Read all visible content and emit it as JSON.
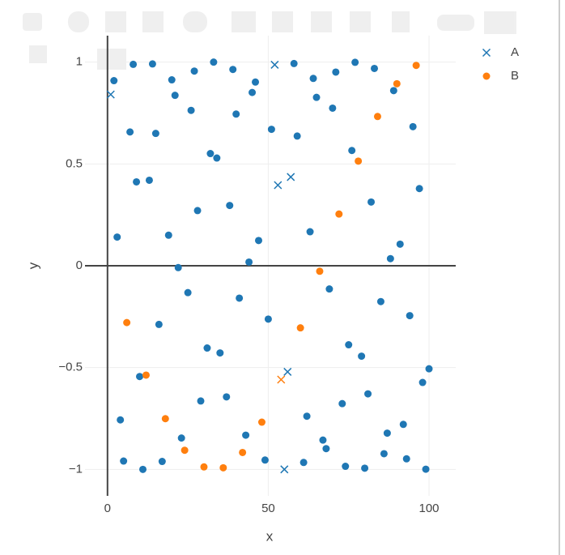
{
  "chart_data": {
    "type": "scatter",
    "x_label": "x",
    "y_label": "y",
    "xlim": [
      -7,
      108.3
    ],
    "ylim": [
      -1.13,
      1.13
    ],
    "xticks": [
      0,
      50,
      100
    ],
    "yticks": [
      {
        "value": -1,
        "label": "−1"
      },
      {
        "value": -0.5,
        "label": "−0.5"
      },
      0,
      0.5,
      1
    ],
    "grid": true,
    "zeroline": true,
    "legend": "top-right",
    "series": [
      {
        "name": "A",
        "symbol": "x",
        "color": "#1f77b4",
        "x": [
          1,
          52,
          53,
          54,
          55,
          56,
          57
        ],
        "values": [
          0.841,
          0.987,
          0.396,
          -0.559,
          -1.0,
          -0.521,
          0.436
        ],
        "colors": [
          "#1f77b4",
          "#1f77b4",
          "#1f77b4",
          "#ff7f0e",
          "#1f77b4",
          "#1f77b4",
          "#1f77b4"
        ]
      },
      {
        "name": "B",
        "symbol": "circle",
        "color": "#ff7f0e",
        "x": [
          2,
          3,
          4,
          5,
          6,
          7,
          8,
          9,
          10,
          11,
          12,
          13,
          14,
          15,
          16,
          17,
          18,
          19,
          20,
          21,
          22,
          23,
          24,
          25,
          26,
          27,
          28,
          29,
          30,
          31,
          32,
          33,
          34,
          35,
          36,
          37,
          38,
          39,
          40,
          41,
          42,
          43,
          44,
          45,
          46,
          47,
          48,
          49,
          50,
          51,
          58,
          59,
          60,
          61,
          62,
          63,
          64,
          65,
          66,
          67,
          68,
          69,
          70,
          71,
          72,
          73,
          74,
          75,
          76,
          77,
          78,
          79,
          80,
          81,
          82,
          83,
          84,
          85,
          86,
          87,
          88,
          89,
          90,
          91,
          92,
          93,
          94,
          95,
          96,
          97,
          98,
          99,
          100
        ],
        "values": [
          0.909,
          0.141,
          -0.757,
          -0.959,
          -0.279,
          0.657,
          0.989,
          0.412,
          -0.544,
          -1.0,
          -0.537,
          0.42,
          0.991,
          0.65,
          -0.288,
          -0.961,
          -0.751,
          0.15,
          0.913,
          0.837,
          -0.009,
          -0.846,
          -0.906,
          -0.132,
          0.763,
          0.956,
          0.271,
          -0.664,
          -0.988,
          -0.404,
          0.551,
          1.0,
          0.529,
          -0.428,
          -0.992,
          -0.644,
          0.296,
          0.964,
          0.745,
          -0.159,
          -0.917,
          -0.832,
          0.018,
          0.851,
          0.902,
          0.124,
          -0.768,
          -0.954,
          -0.262,
          0.67,
          0.993,
          0.637,
          -0.305,
          -0.966,
          -0.739,
          0.167,
          0.92,
          0.827,
          -0.027,
          -0.856,
          -0.898,
          -0.114,
          0.774,
          0.951,
          0.254,
          -0.677,
          -0.985,
          -0.388,
          0.566,
          0.999,
          0.514,
          -0.444,
          -0.994,
          -0.629,
          0.313,
          0.969,
          0.733,
          -0.176,
          -0.923,
          -0.822,
          0.035,
          0.86,
          0.894,
          0.106,
          -0.779,
          -0.948,
          -0.245,
          0.683,
          0.984,
          0.379,
          -0.573,
          -0.999,
          -0.506
        ],
        "colors": [
          "#1f77b4",
          "#1f77b4",
          "#1f77b4",
          "#1f77b4",
          "#ff7f0e",
          "#1f77b4",
          "#1f77b4",
          "#1f77b4",
          "#1f77b4",
          "#1f77b4",
          "#ff7f0e",
          "#1f77b4",
          "#1f77b4",
          "#1f77b4",
          "#1f77b4",
          "#1f77b4",
          "#ff7f0e",
          "#1f77b4",
          "#1f77b4",
          "#1f77b4",
          "#1f77b4",
          "#1f77b4",
          "#ff7f0e",
          "#1f77b4",
          "#1f77b4",
          "#1f77b4",
          "#1f77b4",
          "#1f77b4",
          "#ff7f0e",
          "#1f77b4",
          "#1f77b4",
          "#1f77b4",
          "#1f77b4",
          "#1f77b4",
          "#ff7f0e",
          "#1f77b4",
          "#1f77b4",
          "#1f77b4",
          "#1f77b4",
          "#1f77b4",
          "#ff7f0e",
          "#1f77b4",
          "#1f77b4",
          "#1f77b4",
          "#1f77b4",
          "#1f77b4",
          "#ff7f0e",
          "#1f77b4",
          "#1f77b4",
          "#1f77b4",
          "#1f77b4",
          "#1f77b4",
          "#ff7f0e",
          "#1f77b4",
          "#1f77b4",
          "#1f77b4",
          "#1f77b4",
          "#1f77b4",
          "#ff7f0e",
          "#1f77b4",
          "#1f77b4",
          "#1f77b4",
          "#1f77b4",
          "#1f77b4",
          "#ff7f0e",
          "#1f77b4",
          "#1f77b4",
          "#1f77b4",
          "#1f77b4",
          "#1f77b4",
          "#ff7f0e",
          "#1f77b4",
          "#1f77b4",
          "#1f77b4",
          "#1f77b4",
          "#1f77b4",
          "#ff7f0e",
          "#1f77b4",
          "#1f77b4",
          "#1f77b4",
          "#1f77b4",
          "#1f77b4",
          "#ff7f0e",
          "#1f77b4",
          "#1f77b4",
          "#1f77b4",
          "#1f77b4",
          "#1f77b4",
          "#ff7f0e",
          "#1f77b4",
          "#1f77b4",
          "#1f77b4",
          "#1f77b4"
        ]
      }
    ]
  }
}
